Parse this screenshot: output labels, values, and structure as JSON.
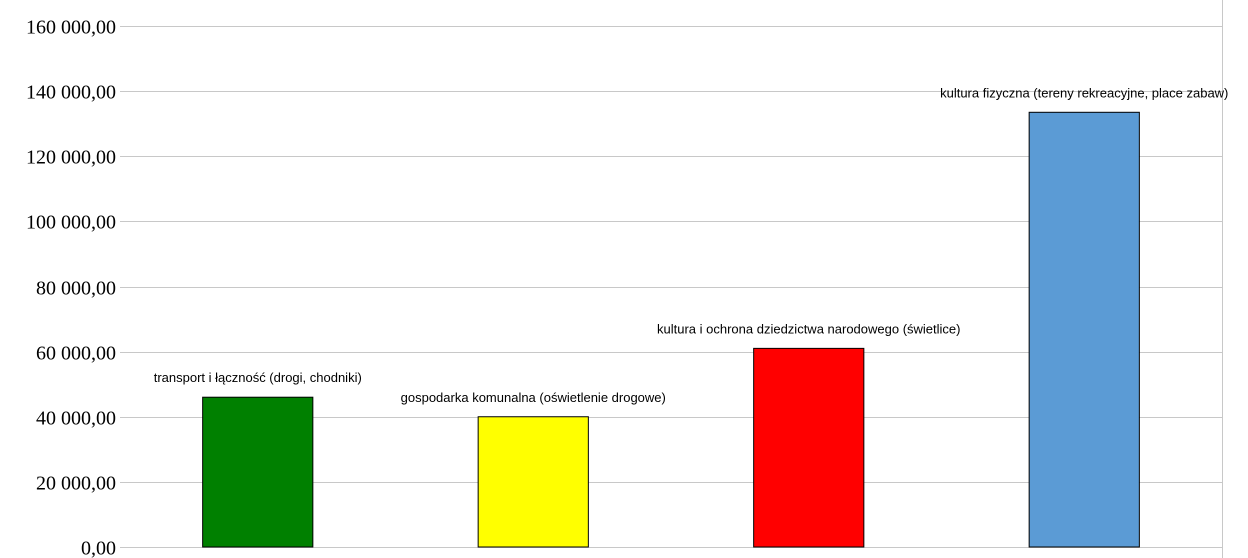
{
  "chart_data": {
    "type": "bar",
    "title": "",
    "xlabel": "",
    "ylabel": "",
    "ylim": [
      0,
      160000
    ],
    "yticks": [
      0,
      20000,
      40000,
      60000,
      80000,
      100000,
      120000,
      140000,
      160000
    ],
    "ytick_labels": [
      "0,00",
      "20 000,00",
      "40 000,00",
      "60 000,00",
      "80 000,00",
      "100 000,00",
      "120 000,00",
      "140 000,00",
      "160 000,00"
    ],
    "grid": true,
    "categories": [
      "transport i łączność (drogi, chodniki)",
      "gospodarka komunalna (oświetlenie drogowe)",
      "kultura i ochrona dziedzictwa narodowego (świetlice)",
      "kultura fizyczna (tereny rekreacyjne, place zabaw)"
    ],
    "values": [
      46000,
      40000,
      61000,
      133500
    ],
    "colors": [
      "#008000",
      "#ffff00",
      "#ff0000",
      "#5b9bd5"
    ]
  }
}
